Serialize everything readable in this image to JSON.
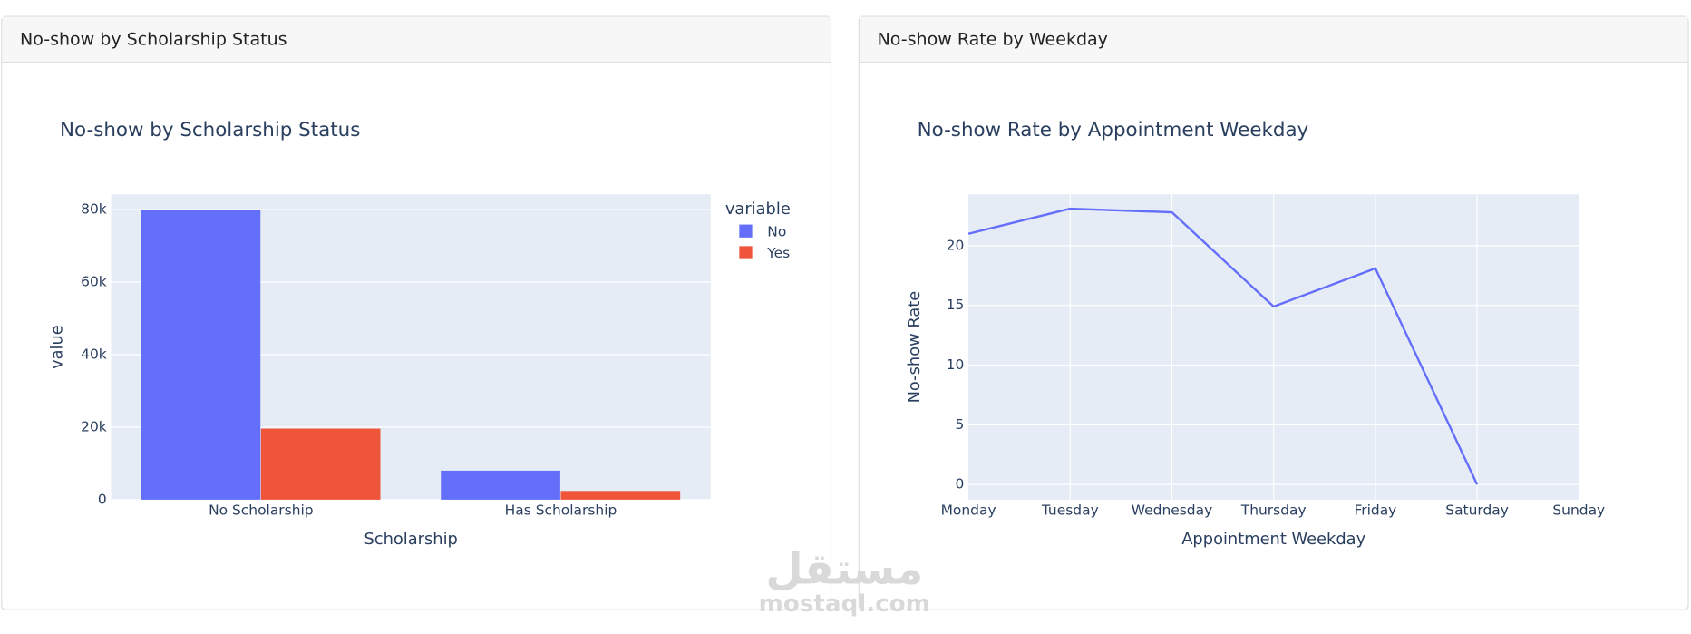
{
  "chart_data": [
    {
      "type": "bar",
      "card_title": "No-show by Scholarship Status",
      "title": "No-show by Scholarship Status",
      "x_label": "Scholarship",
      "y_label": "value",
      "legend_title": "variable",
      "legend": "top-right-outside",
      "categories": [
        "No Scholarship",
        "Has Scholarship"
      ],
      "series": [
        {
          "name": "No",
          "color": "#636efa",
          "values": [
            79900,
            8000
          ]
        },
        {
          "name": "Yes",
          "color": "#ef553b",
          "values": [
            19600,
            2400
          ]
        }
      ],
      "ylim": [
        0,
        84200
      ],
      "yticks": [
        0,
        {
          "value": 20000,
          "label": "20k"
        },
        {
          "value": 40000,
          "label": "40k"
        },
        {
          "value": 60000,
          "label": "60k"
        },
        {
          "value": 80000,
          "label": "80k"
        }
      ],
      "grid": true
    },
    {
      "type": "line",
      "card_title": "No-show Rate by Weekday",
      "title": "No-show Rate by Appointment Weekday",
      "x_label": "Appointment Weekday",
      "y_label": "No-show Rate",
      "categories": [
        "Monday",
        "Tuesday",
        "Wednesday",
        "Thursday",
        "Friday",
        "Saturday",
        "Sunday"
      ],
      "series": [
        {
          "name": "No-show Rate",
          "color": "#636efa",
          "values": [
            21.0,
            23.1,
            22.8,
            14.9,
            18.1,
            0,
            null
          ]
        }
      ],
      "ylim": [
        -1.27,
        24.3
      ],
      "yticks": [
        0,
        5,
        10,
        15,
        20
      ],
      "grid": true
    }
  ],
  "watermark": {
    "arabic": "مستقل",
    "latin": "mostaql.com"
  }
}
